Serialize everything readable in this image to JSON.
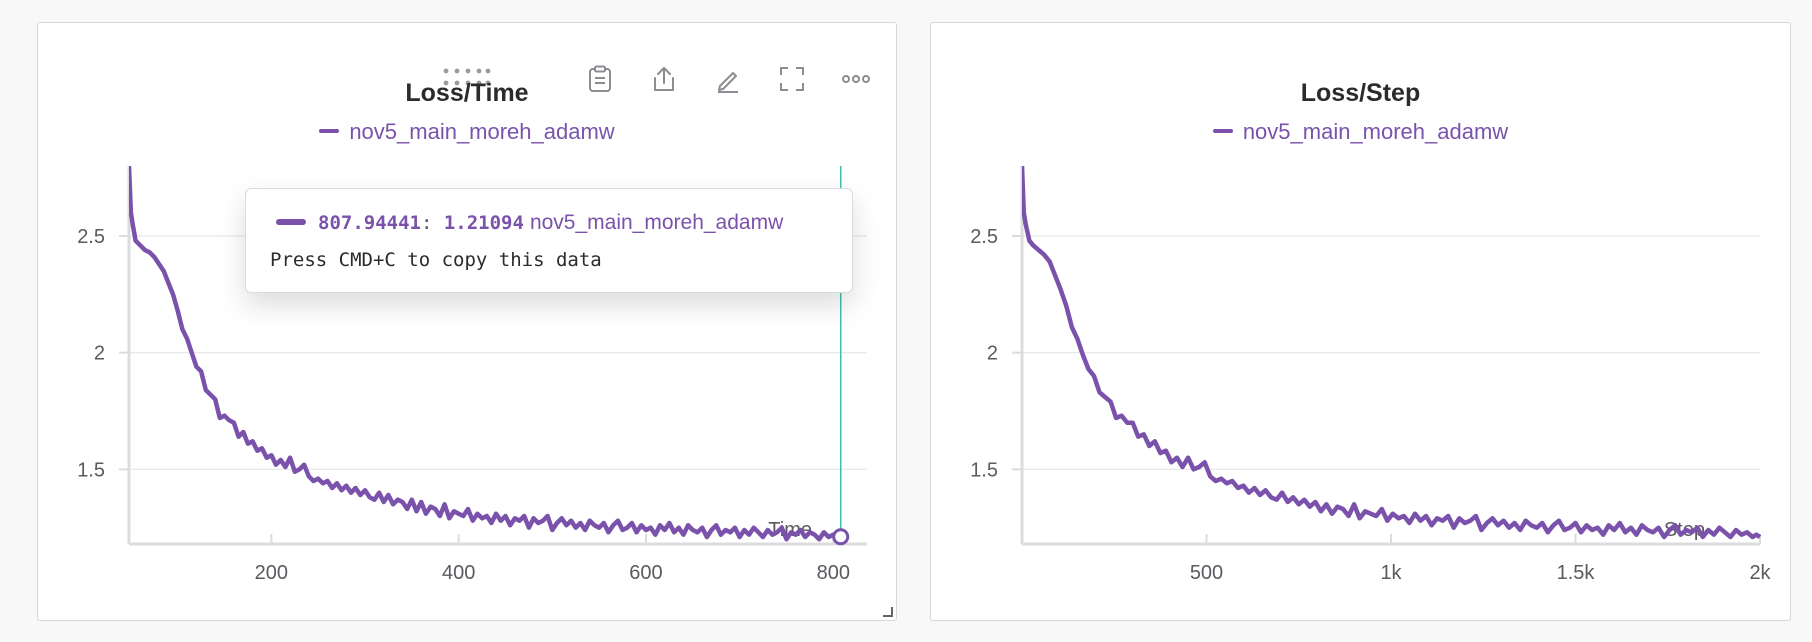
{
  "colors": {
    "series": "#7b52ab",
    "crosshair": "#3fbfb0",
    "grid": "#e6e6e9",
    "axis": "#dcdcdf",
    "tick_text": "#5a5a60"
  },
  "toolbar": {
    "icons": [
      "drag-handle-icon",
      "clipboard-icon",
      "share-icon",
      "pencil-icon",
      "fullscreen-icon",
      "more-icon"
    ]
  },
  "tooltip": {
    "x_value": "807.94441",
    "separator": ":",
    "y_value": "1.21094",
    "run_name": "nov5_main_moreh_adamw",
    "copy_hint": "Press CMD+C to copy this data"
  },
  "chart_data": [
    {
      "type": "line",
      "title": "Loss/Time",
      "xlabel": "Time",
      "ylabel": "",
      "legend": [
        "nov5_main_moreh_adamw"
      ],
      "legend_position": "top-center",
      "grid": true,
      "xlim": [
        48,
        836
      ],
      "ylim": [
        1.18,
        2.8
      ],
      "xticks": [
        200,
        400,
        600,
        800
      ],
      "xtick_labels": [
        "200",
        "400",
        "600",
        "800"
      ],
      "yticks": [
        1.5,
        2,
        2.5
      ],
      "ytick_labels": [
        "1.5",
        "2",
        "2.5"
      ],
      "highlight_point": {
        "x": 807.94441,
        "y": 1.21094
      },
      "series": [
        {
          "name": "nov5_main_moreh_adamw",
          "x": [
            48,
            50,
            52,
            55,
            60,
            65,
            70,
            75,
            80,
            85,
            90,
            95,
            100,
            105,
            110,
            115,
            120,
            125,
            130,
            135,
            140,
            145,
            150,
            155,
            160,
            165,
            170,
            175,
            180,
            185,
            190,
            195,
            200,
            205,
            210,
            215,
            220,
            225,
            230,
            235,
            240,
            245,
            250,
            255,
            260,
            265,
            270,
            275,
            280,
            285,
            290,
            295,
            300,
            305,
            310,
            315,
            320,
            325,
            330,
            335,
            340,
            345,
            350,
            355,
            360,
            365,
            370,
            375,
            380,
            385,
            390,
            395,
            400,
            405,
            410,
            415,
            420,
            425,
            430,
            435,
            440,
            445,
            450,
            455,
            460,
            465,
            470,
            475,
            480,
            485,
            490,
            495,
            500,
            505,
            510,
            515,
            520,
            525,
            530,
            535,
            540,
            545,
            550,
            555,
            560,
            565,
            570,
            575,
            580,
            585,
            590,
            595,
            600,
            605,
            610,
            615,
            620,
            625,
            630,
            635,
            640,
            645,
            650,
            655,
            660,
            665,
            670,
            675,
            680,
            685,
            690,
            695,
            700,
            705,
            710,
            715,
            720,
            725,
            730,
            735,
            740,
            745,
            750,
            755,
            760,
            765,
            770,
            775,
            780,
            785,
            790,
            795,
            800,
            805,
            807.94
          ],
          "y": [
            2.8,
            2.6,
            2.55,
            2.48,
            2.46,
            2.44,
            2.43,
            2.41,
            2.38,
            2.35,
            2.3,
            2.25,
            2.18,
            2.1,
            2.06,
            2.0,
            1.94,
            1.92,
            1.84,
            1.82,
            1.8,
            1.72,
            1.73,
            1.71,
            1.7,
            1.64,
            1.66,
            1.61,
            1.62,
            1.58,
            1.59,
            1.55,
            1.56,
            1.52,
            1.54,
            1.51,
            1.55,
            1.49,
            1.5,
            1.52,
            1.47,
            1.45,
            1.46,
            1.44,
            1.45,
            1.42,
            1.44,
            1.41,
            1.43,
            1.4,
            1.42,
            1.39,
            1.41,
            1.38,
            1.37,
            1.4,
            1.36,
            1.39,
            1.35,
            1.37,
            1.36,
            1.33,
            1.37,
            1.32,
            1.36,
            1.31,
            1.34,
            1.33,
            1.3,
            1.35,
            1.29,
            1.32,
            1.31,
            1.3,
            1.33,
            1.28,
            1.31,
            1.29,
            1.3,
            1.27,
            1.31,
            1.28,
            1.3,
            1.26,
            1.29,
            1.28,
            1.3,
            1.25,
            1.29,
            1.27,
            1.28,
            1.3,
            1.24,
            1.27,
            1.29,
            1.26,
            1.28,
            1.25,
            1.27,
            1.24,
            1.28,
            1.26,
            1.25,
            1.27,
            1.23,
            1.26,
            1.28,
            1.24,
            1.25,
            1.27,
            1.23,
            1.26,
            1.24,
            1.25,
            1.22,
            1.26,
            1.24,
            1.27,
            1.23,
            1.25,
            1.22,
            1.26,
            1.24,
            1.23,
            1.25,
            1.21,
            1.24,
            1.26,
            1.22,
            1.24,
            1.23,
            1.25,
            1.21,
            1.24,
            1.22,
            1.25,
            1.23,
            1.21,
            1.24,
            1.22,
            1.23,
            1.25,
            1.2,
            1.23,
            1.22,
            1.24,
            1.21,
            1.23,
            1.22,
            1.2,
            1.23,
            1.21,
            1.22,
            1.21,
            1.21
          ]
        }
      ]
    },
    {
      "type": "line",
      "title": "Loss/Step",
      "xlabel": "Step",
      "ylabel": "",
      "legend": [
        "nov5_main_moreh_adamw"
      ],
      "legend_position": "top-center",
      "grid": true,
      "xlim": [
        0,
        2000
      ],
      "ylim": [
        1.18,
        2.8
      ],
      "xticks": [
        500,
        1000,
        1500,
        2000
      ],
      "xtick_labels": [
        "500",
        "1k",
        "1.5k",
        "2k"
      ],
      "yticks": [
        1.5,
        2,
        2.5
      ],
      "ytick_labels": [
        "1.5",
        "2",
        "2.5"
      ],
      "series": [
        {
          "name": "nov5_main_moreh_adamw",
          "x": [
            0,
            5,
            10,
            20,
            30,
            45,
            60,
            75,
            90,
            105,
            120,
            135,
            150,
            165,
            180,
            195,
            210,
            225,
            240,
            255,
            270,
            285,
            300,
            315,
            330,
            345,
            360,
            375,
            390,
            405,
            420,
            435,
            450,
            465,
            480,
            495,
            510,
            525,
            540,
            555,
            570,
            585,
            600,
            615,
            630,
            645,
            660,
            675,
            690,
            705,
            720,
            735,
            750,
            765,
            780,
            795,
            810,
            825,
            840,
            855,
            870,
            885,
            900,
            915,
            930,
            945,
            960,
            975,
            990,
            1005,
            1020,
            1035,
            1050,
            1065,
            1080,
            1095,
            1110,
            1125,
            1140,
            1155,
            1170,
            1185,
            1200,
            1215,
            1230,
            1245,
            1260,
            1275,
            1290,
            1305,
            1320,
            1335,
            1350,
            1365,
            1380,
            1395,
            1410,
            1425,
            1440,
            1455,
            1470,
            1485,
            1500,
            1515,
            1530,
            1545,
            1560,
            1575,
            1590,
            1605,
            1620,
            1635,
            1650,
            1665,
            1680,
            1695,
            1710,
            1725,
            1740,
            1755,
            1770,
            1785,
            1800,
            1815,
            1830,
            1845,
            1860,
            1875,
            1890,
            1905,
            1920,
            1935,
            1950,
            1965,
            1980,
            1990,
            2000
          ],
          "y": [
            2.8,
            2.6,
            2.55,
            2.48,
            2.46,
            2.44,
            2.42,
            2.39,
            2.33,
            2.27,
            2.2,
            2.11,
            2.06,
            1.99,
            1.93,
            1.9,
            1.83,
            1.81,
            1.79,
            1.72,
            1.73,
            1.7,
            1.7,
            1.64,
            1.65,
            1.6,
            1.62,
            1.57,
            1.58,
            1.53,
            1.55,
            1.51,
            1.55,
            1.5,
            1.51,
            1.53,
            1.47,
            1.45,
            1.46,
            1.44,
            1.45,
            1.42,
            1.43,
            1.4,
            1.42,
            1.39,
            1.41,
            1.38,
            1.37,
            1.4,
            1.36,
            1.38,
            1.35,
            1.37,
            1.34,
            1.36,
            1.32,
            1.35,
            1.31,
            1.34,
            1.33,
            1.3,
            1.35,
            1.29,
            1.32,
            1.31,
            1.3,
            1.33,
            1.28,
            1.31,
            1.29,
            1.3,
            1.27,
            1.31,
            1.28,
            1.3,
            1.26,
            1.29,
            1.28,
            1.3,
            1.25,
            1.29,
            1.27,
            1.28,
            1.3,
            1.24,
            1.27,
            1.29,
            1.26,
            1.28,
            1.25,
            1.27,
            1.24,
            1.28,
            1.26,
            1.25,
            1.27,
            1.23,
            1.26,
            1.28,
            1.24,
            1.25,
            1.27,
            1.23,
            1.26,
            1.24,
            1.25,
            1.22,
            1.26,
            1.24,
            1.27,
            1.23,
            1.25,
            1.22,
            1.26,
            1.24,
            1.23,
            1.25,
            1.21,
            1.24,
            1.26,
            1.22,
            1.24,
            1.23,
            1.25,
            1.21,
            1.24,
            1.22,
            1.25,
            1.23,
            1.21,
            1.24,
            1.22,
            1.23,
            1.21,
            1.22,
            1.21
          ]
        }
      ]
    }
  ]
}
